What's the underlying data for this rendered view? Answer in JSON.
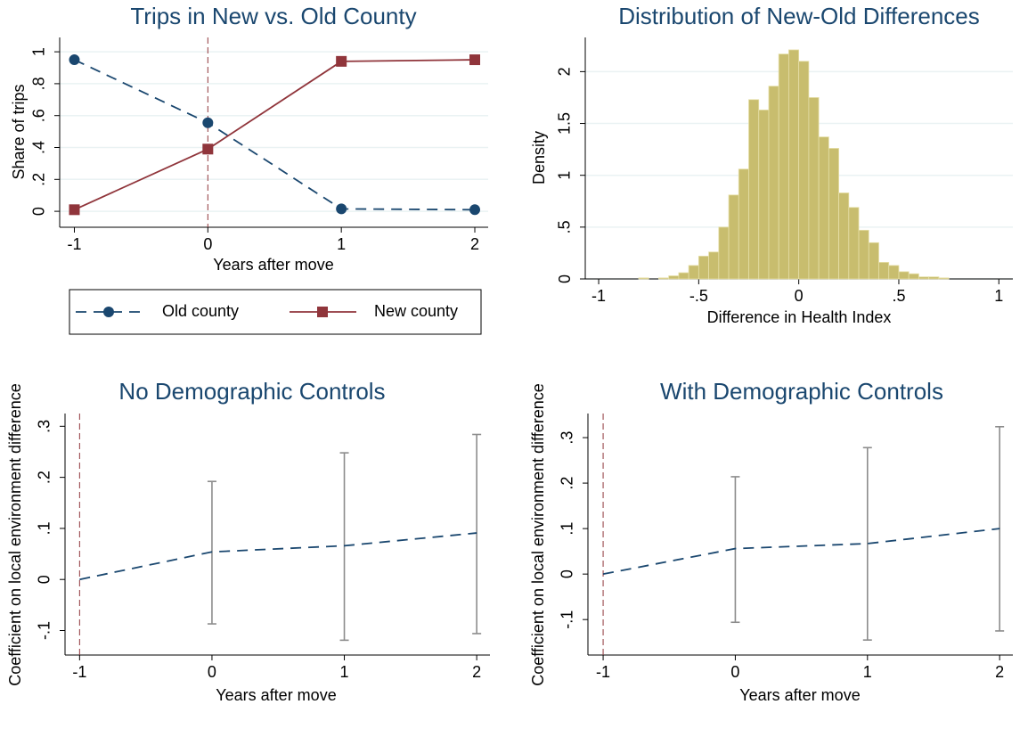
{
  "chart_data": [
    {
      "type": "line",
      "title": "Trips in New vs. Old County",
      "xlabel": "Years after move",
      "ylabel": "Share of trips",
      "x": [
        -1,
        0,
        1,
        2
      ],
      "series": [
        {
          "name": "Old county",
          "color": "#1a476f",
          "marker": "circle",
          "dash": true,
          "values": [
            0.95,
            0.555,
            0.015,
            0.01
          ]
        },
        {
          "name": "New county",
          "color": "#90353b",
          "marker": "square",
          "dash": false,
          "values": [
            0.01,
            0.39,
            0.94,
            0.95
          ]
        }
      ],
      "xlim": [
        -1.11,
        2.1
      ],
      "ylim": [
        -0.1,
        1.09
      ],
      "xticks": [
        -1,
        0,
        1,
        2
      ],
      "yticks": [
        0,
        {
          "value": 0.2,
          "label": ".2"
        },
        {
          "value": 0.4,
          "label": ".4"
        },
        {
          "value": 0.6,
          "label": ".6"
        },
        {
          "value": 0.8,
          "label": ".8"
        },
        1
      ],
      "xline": 0,
      "xline_color": "#90353b",
      "grid": true,
      "legend": "bottom"
    },
    {
      "type": "histogram",
      "title": "Distribution of New-Old Differences",
      "xlabel": "Difference in Health Index",
      "ylabel": "Density",
      "color": "#c8bd6e",
      "bins": [
        -0.85,
        -0.8,
        -0.75,
        -0.7,
        -0.65,
        -0.6,
        -0.55,
        -0.5,
        -0.45,
        -0.4,
        -0.35,
        -0.3,
        -0.25,
        -0.2,
        -0.15,
        -0.1,
        -0.05,
        0,
        0.05,
        0.1,
        0.15,
        0.2,
        0.25,
        0.3,
        0.35,
        0.4,
        0.45,
        0.5,
        0.55,
        0.6,
        0.65,
        0.7,
        0.75
      ],
      "values": [
        0,
        0.01,
        0,
        0.01,
        0.03,
        0.06,
        0.13,
        0.22,
        0.26,
        0.5,
        0.81,
        1.06,
        1.73,
        1.63,
        1.86,
        2.17,
        2.21,
        2.1,
        1.75,
        1.37,
        1.26,
        0.83,
        0.69,
        0.47,
        0.35,
        0.16,
        0.13,
        0.07,
        0.05,
        0.02,
        0.02,
        0.01
      ],
      "xlim": [
        -1.067,
        1.07
      ],
      "ylim": [
        0,
        2.33
      ],
      "xticks": [
        -1,
        {
          "value": -0.5,
          "label": "-.5"
        },
        0,
        {
          "value": 0.5,
          "label": ".5"
        },
        1
      ],
      "yticks": [
        0,
        {
          "value": 0.5,
          "label": ".5"
        },
        1,
        1.5,
        2
      ],
      "grid": true
    },
    {
      "type": "errorbar",
      "title": "No Demographic Controls",
      "xlabel": "Years after move",
      "ylabel": "Coefficient on local environment difference",
      "x": [
        -1,
        0,
        1,
        2
      ],
      "values": [
        0,
        0.054,
        0.066,
        0.091
      ],
      "ci_lower": [
        null,
        -0.087,
        -0.119,
        -0.106
      ],
      "ci_upper": [
        null,
        0.192,
        0.248,
        0.284
      ],
      "color": "#1a476f",
      "ci_color": "#8c8c8c",
      "xlim": [
        -1.11,
        2.1
      ],
      "ylim": [
        -0.148,
        0.325
      ],
      "xticks": [
        -1,
        0,
        1,
        2
      ],
      "yticks": [
        {
          "value": -0.1,
          "label": "-.1"
        },
        0,
        {
          "value": 0.1,
          "label": ".1"
        },
        {
          "value": 0.2,
          "label": ".2"
        },
        {
          "value": 0.3,
          "label": ".3"
        }
      ],
      "xline": -1,
      "xline_color": "#90353b",
      "grid": false
    },
    {
      "type": "errorbar",
      "title": "With Demographic Controls",
      "xlabel": "Years after move",
      "ylabel": "Coefficient on local environment difference",
      "x": [
        -1,
        0,
        1,
        2
      ],
      "values": [
        0,
        0.056,
        0.067,
        0.1
      ],
      "ci_lower": [
        null,
        -0.106,
        -0.145,
        -0.125
      ],
      "ci_upper": [
        null,
        0.214,
        0.278,
        0.324
      ],
      "color": "#1a476f",
      "ci_color": "#8c8c8c",
      "xlim": [
        -1.115,
        2.1
      ],
      "ylim": [
        -0.178,
        0.353
      ],
      "xticks": [
        -1,
        0,
        1,
        2
      ],
      "yticks": [
        {
          "value": -0.1,
          "label": "-.1"
        },
        0,
        {
          "value": 0.1,
          "label": ".1"
        },
        {
          "value": 0.2,
          "label": ".2"
        },
        {
          "value": 0.3,
          "label": ".3"
        }
      ],
      "xline": -1,
      "xline_color": "#90353b",
      "grid": false
    }
  ]
}
